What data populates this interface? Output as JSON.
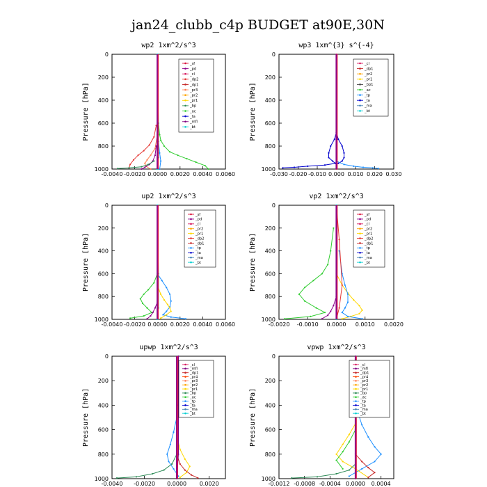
{
  "suptitle": "jan24_clubb_c4p  BUDGET at90E,30N",
  "colors": {
    "_sf": "#dc143c",
    "_pd": "#8b008b",
    "_cl": "#d81b60",
    "_dp2": "#e53935",
    "_dp1": "#c62828",
    "_pr3": "#ff7f50",
    "_pr2": "#ffa500",
    "_pr1": "#ffd700",
    "_bp": "#2e8b57",
    "_ac": "#32cd32",
    "_ta": "#0000cd",
    "_tp": "#1e90ff",
    "_ma": "#4682b4",
    "_bt": "#00ced1",
    "_mfl": "#800080",
    "_pr4": "#ff4500"
  },
  "chart_data": [
    {
      "type": "line",
      "title": "wp2   1xm^2/s^3",
      "ylabel": "Pressure  [hPa]",
      "xlim": [
        -0.004,
        0.006
      ],
      "ylim": [
        1000,
        0
      ],
      "xticks": [
        "-0.0040",
        "-0.0020",
        "0.0000",
        "0.0020",
        "0.0040",
        "0.0060"
      ],
      "yticks": [
        "0",
        "200",
        "400",
        "600",
        "800",
        "1000"
      ],
      "legend": [
        "_sf",
        "_pd",
        "_cl",
        "_dp2",
        "_dp1",
        "_pr3",
        "_pr2",
        "_pr1",
        "_bp",
        "_ac",
        "_ta",
        "_mfl",
        "_bt"
      ],
      "series": [
        {
          "name": "_ac",
          "color": "#32cd32",
          "x": [
            0.0001,
            0.0002,
            0.0003,
            0.0006,
            0.0011,
            0.0018,
            0.0026,
            0.0034,
            0.0042,
            0.0045
          ],
          "y": [
            600,
            700,
            750,
            800,
            850,
            880,
            910,
            940,
            970,
            1000
          ]
        },
        {
          "name": "_dp2",
          "color": "#e53935",
          "x": [
            -0.0001,
            -0.0003,
            -0.0007,
            -0.0012,
            -0.0017,
            -0.0021,
            -0.0024,
            -0.0025
          ],
          "y": [
            620,
            720,
            790,
            840,
            880,
            920,
            960,
            990
          ]
        },
        {
          "name": "_pr3",
          "color": "#ff7f50",
          "x": [
            0,
            -0.0002,
            -0.0006,
            -0.0009,
            -0.0011,
            -0.001,
            -0.0006
          ],
          "y": [
            700,
            820,
            880,
            920,
            950,
            975,
            1000
          ]
        },
        {
          "name": "_pd",
          "color": "#8b008b",
          "x": [
            -0.0001,
            -0.0002,
            -0.0004,
            -0.0007,
            -0.0011,
            -0.0014
          ],
          "y": [
            800,
            880,
            930,
            960,
            985,
            1000
          ]
        },
        {
          "name": "_bp",
          "color": "#2e8b57",
          "x": [
            -0.0003,
            -0.0008,
            -0.0014,
            -0.0025,
            -0.0035
          ],
          "y": [
            930,
            960,
            980,
            990,
            995
          ]
        },
        {
          "name": "_tp",
          "color": "#1e90ff",
          "x": [
            0,
            0.0001,
            0.0002,
            0.0003,
            0.0002
          ],
          "y": [
            600,
            760,
            860,
            930,
            1000
          ]
        },
        {
          "name": "_bt",
          "color": "#00ced1",
          "x": [
            0,
            0.0001,
            0.0001,
            0.0
          ],
          "y": [
            0,
            600,
            900,
            1000
          ]
        }
      ]
    },
    {
      "type": "line",
      "title": "wp3   1xm^{3} s^{-4}",
      "ylabel": "Pressure  [hPa]",
      "xlim": [
        -0.03,
        0.03
      ],
      "ylim": [
        1000,
        0
      ],
      "xticks": [
        "-0.030",
        "-0.020",
        "-0.010",
        "0.000",
        "0.010",
        "0.020",
        "0.030"
      ],
      "yticks": [
        "0",
        "200",
        "400",
        "600",
        "800",
        "1000"
      ],
      "legend": [
        "_cl",
        "_dp1",
        "_pr2",
        "_pr1",
        "_bp1",
        "_ac",
        "_tp",
        "_ta",
        "_ma",
        "_bt"
      ],
      "series": [
        {
          "name": "_ta",
          "color": "#0000cd",
          "x": [
            0,
            -0.001,
            -0.003,
            -0.004,
            -0.004,
            -0.002,
            -0.0005,
            -0.006,
            -0.015,
            -0.022,
            -0.028
          ],
          "y": [
            680,
            740,
            800,
            860,
            900,
            930,
            950,
            965,
            975,
            985,
            990
          ]
        },
        {
          "name": "_ta",
          "color": "#0000cd",
          "x": [
            0,
            0.001,
            0.003,
            0.004,
            0.004,
            0.003,
            0.001
          ],
          "y": [
            680,
            740,
            800,
            860,
            900,
            930,
            950
          ]
        },
        {
          "name": "_tp",
          "color": "#1e90ff",
          "x": [
            0,
            0.004,
            0.009,
            0.014,
            0.019,
            0.022
          ],
          "y": [
            930,
            960,
            975,
            985,
            990,
            995
          ]
        },
        {
          "name": "_cl",
          "color": "#d81b60",
          "x": [
            0,
            0,
            0,
            0
          ],
          "y": [
            0,
            400,
            800,
            1000
          ]
        }
      ]
    },
    {
      "type": "line",
      "title": "up2   1xm^2/s^3",
      "ylabel": "Pressure  [hPa]",
      "xlim": [
        -0.004,
        0.006
      ],
      "ylim": [
        1000,
        0
      ],
      "xticks": [
        "-0.0040",
        "-0.0020",
        "0.0000",
        "0.0020",
        "0.0040",
        "0.0060"
      ],
      "yticks": [
        "0",
        "200",
        "400",
        "600",
        "800",
        "1000"
      ],
      "legend": [
        "_sf",
        "_pd",
        "_cl",
        "_pr2",
        "_pr1",
        "_dp2",
        "_dp1",
        "_tp",
        "_ta",
        "_ma",
        "_bt"
      ],
      "series": [
        {
          "name": "_ac",
          "color": "#32cd32",
          "x": [
            0,
            -0.0003,
            -0.0008,
            -0.0012,
            -0.0015,
            -0.0013,
            -0.0009,
            -0.0005,
            -0.0012,
            -0.0024
          ],
          "y": [
            600,
            680,
            740,
            780,
            820,
            860,
            900,
            940,
            970,
            990
          ]
        },
        {
          "name": "_tp",
          "color": "#1e90ff",
          "x": [
            0,
            0.0004,
            0.0008,
            0.0011,
            0.0012,
            0.0011,
            0.0008,
            0.0005,
            0.0012,
            0.0025
          ],
          "y": [
            600,
            660,
            720,
            780,
            840,
            890,
            930,
            960,
            980,
            995
          ]
        },
        {
          "name": "_pr2",
          "color": "#ffd700",
          "x": [
            0,
            0.0003,
            0.0006,
            0.0009,
            0.0011,
            0.0012,
            0.0008,
            0.0003
          ],
          "y": [
            700,
            780,
            830,
            870,
            900,
            930,
            960,
            990
          ]
        },
        {
          "name": "_pd",
          "color": "#8b008b",
          "x": [
            0,
            -0.0002,
            -0.0004,
            -0.0006,
            -0.0009
          ],
          "y": [
            850,
            900,
            940,
            970,
            995
          ]
        },
        {
          "name": "_bt",
          "color": "#00ced1",
          "x": [
            0,
            0.0001,
            0.0001,
            0
          ],
          "y": [
            0,
            600,
            900,
            1000
          ]
        }
      ]
    },
    {
      "type": "line",
      "title": "vp2   1xm^2/s^3",
      "ylabel": "Pressure  [hPa]",
      "xlim": [
        -0.002,
        0.002
      ],
      "ylim": [
        1000,
        0
      ],
      "xticks": [
        "-0.0020",
        "-0.0010",
        "0.0000",
        "0.0010",
        "0.0020"
      ],
      "yticks": [
        "0",
        "200",
        "400",
        "600",
        "800",
        "1000"
      ],
      "legend": [
        "_sf",
        "_pd",
        "_cl",
        "_pr2",
        "_pr1",
        "_dp2",
        "_dp1",
        "_tp",
        "_ta",
        "_ma",
        "_bt"
      ],
      "series": [
        {
          "name": "_ac",
          "color": "#32cd32",
          "x": [
            -0.0001,
            -0.0002,
            -0.0003,
            -0.0005,
            -0.0008,
            -0.0011,
            -0.0013,
            -0.0011,
            -0.0007,
            -0.0004,
            -0.0009,
            -0.0018
          ],
          "y": [
            200,
            400,
            520,
            600,
            660,
            720,
            780,
            840,
            900,
            940,
            975,
            995
          ]
        },
        {
          "name": "_pr2",
          "color": "#ffd700",
          "x": [
            0,
            0.0002,
            0.0004,
            0.0006,
            0.0008,
            0.0009,
            0.0008,
            0.0005,
            0.0002
          ],
          "y": [
            600,
            700,
            770,
            830,
            880,
            920,
            950,
            975,
            995
          ]
        },
        {
          "name": "_tp",
          "color": "#1e90ff",
          "x": [
            0.0001,
            0.0002,
            0.0003,
            0.0004,
            0.0004,
            0.0003,
            0.0002,
            0.0004,
            0.0009
          ],
          "y": [
            400,
            600,
            700,
            780,
            850,
            900,
            940,
            975,
            995
          ]
        },
        {
          "name": "_pd",
          "color": "#8b008b",
          "x": [
            0,
            -0.0001,
            -0.0002,
            -0.0003,
            -0.0005
          ],
          "y": [
            800,
            880,
            930,
            965,
            995
          ]
        },
        {
          "name": "_dp2",
          "color": "#e53935",
          "x": [
            0,
            0.0001,
            0.0002,
            0.0001,
            0
          ],
          "y": [
            0,
            300,
            700,
            900,
            1000
          ]
        },
        {
          "name": "_bt",
          "color": "#00ced1",
          "x": [
            0,
            0,
            0,
            0
          ],
          "y": [
            0,
            400,
            800,
            1000
          ]
        }
      ]
    },
    {
      "type": "line",
      "title": "upwp   1xm^2/s^3",
      "ylabel": "Pressure  [hPa]",
      "xlim": [
        -0.004,
        0.003
      ],
      "ylim": [
        1000,
        0
      ],
      "xticks": [
        "-0.0040",
        "-0.0020",
        "0.0000",
        "0.0020"
      ],
      "yticks": [
        "0",
        "200",
        "400",
        "600",
        "800",
        "1000"
      ],
      "legend": [
        "_cl",
        "_mfl",
        "_dp1",
        "_pr4",
        "_pr3",
        "_pr2",
        "_pr1",
        "_bp",
        "_ac",
        "_tp",
        "_ta",
        "_ma",
        "_bt"
      ],
      "series": [
        {
          "name": "_bp",
          "color": "#2e8b57",
          "x": [
            0,
            -0.0003,
            -0.0008,
            -0.0015,
            -0.0025,
            -0.0037
          ],
          "y": [
            800,
            880,
            930,
            960,
            985,
            995
          ]
        },
        {
          "name": "_tp",
          "color": "#1e90ff",
          "x": [
            0,
            -0.0002,
            -0.0004,
            -0.0006,
            -0.0005,
            -0.0002,
            0.0001
          ],
          "y": [
            500,
            620,
            720,
            800,
            860,
            920,
            980
          ]
        },
        {
          "name": "_pr2",
          "color": "#ffd700",
          "x": [
            0,
            0.0002,
            0.0005,
            0.0008,
            0.0006,
            0.0002
          ],
          "y": [
            650,
            760,
            840,
            900,
            950,
            990
          ]
        },
        {
          "name": "_dp1",
          "color": "#c62828",
          "x": [
            0,
            0.0002,
            0.0005,
            0.0009,
            0.0013
          ],
          "y": [
            800,
            880,
            930,
            970,
            995
          ]
        },
        {
          "name": "_mfl",
          "color": "#800080",
          "x": [
            0.0001,
            0.0001,
            0.0001,
            0
          ],
          "y": [
            0,
            400,
            800,
            1000
          ]
        }
      ]
    },
    {
      "type": "line",
      "title": "vpwp   1xm^2/s^3",
      "ylabel": "Pressure  [hPa]",
      "xlim": [
        -0.0012,
        0.0006
      ],
      "ylim": [
        1000,
        0
      ],
      "xticks": [
        "-0.0012",
        "-0.0008",
        "-0.0004",
        "0.0000",
        "0.0004"
      ],
      "yticks": [
        "0",
        "200",
        "400",
        "600",
        "800",
        "1000"
      ],
      "legend": [
        "_cl",
        "_mfl",
        "_dp1",
        "_pr4",
        "_pr3",
        "_pr2",
        "_pr1",
        "_bp",
        "_ac",
        "_tp",
        "_ta",
        "_ma",
        "_bt"
      ],
      "series": [
        {
          "name": "_tp",
          "color": "#1e90ff",
          "x": [
            0,
            0.0001,
            0.0002,
            0.0003,
            0.0004,
            0.0003,
            0.0001,
            -0.0001
          ],
          "y": [
            400,
            560,
            660,
            740,
            800,
            860,
            920,
            980
          ]
        },
        {
          "name": "_pr2",
          "color": "#ffd700",
          "x": [
            0,
            -0.0001,
            -0.0002,
            -0.0003,
            -0.0002,
            0,
            0.0002
          ],
          "y": [
            550,
            640,
            720,
            800,
            860,
            920,
            990
          ]
        },
        {
          "name": "_ac",
          "color": "#32cd32",
          "x": [
            0,
            -0.0001,
            -0.0002,
            -0.0003,
            -0.0002
          ],
          "y": [
            600,
            700,
            780,
            850,
            920
          ]
        },
        {
          "name": "_bp",
          "color": "#2e8b57",
          "x": [
            0,
            -0.0001,
            -0.0003,
            -0.0006,
            -0.001
          ],
          "y": [
            880,
            930,
            960,
            985,
            995
          ]
        },
        {
          "name": "_dp1",
          "color": "#c62828",
          "x": [
            0,
            0.0001,
            0.0002,
            0.0003,
            0.0002
          ],
          "y": [
            800,
            860,
            910,
            950,
            990
          ]
        },
        {
          "name": "_mfl",
          "color": "#800080",
          "x": [
            0,
            0,
            0,
            0
          ],
          "y": [
            0,
            400,
            800,
            1000
          ]
        }
      ]
    }
  ]
}
